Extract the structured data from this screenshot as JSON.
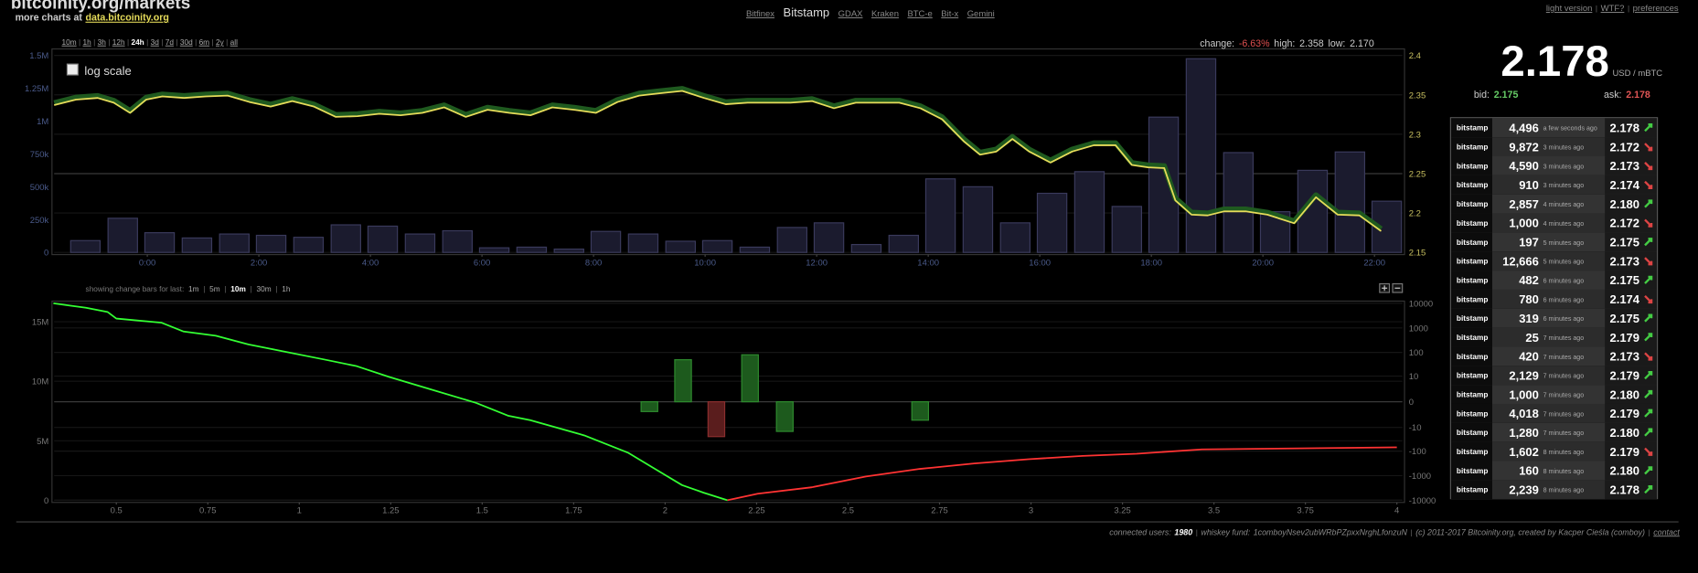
{
  "separator": "|",
  "header": {
    "title": "bitcoinity.org/markets",
    "more_charts": "more charts at",
    "more_charts_link": "data.bitcoinity.org",
    "exchanges": [
      "Bitfinex",
      "Bitstamp",
      "GDAX",
      "Kraken",
      "BTC-e",
      "Bit-x",
      "Gemini"
    ],
    "active_exchange": 1,
    "top_links": [
      "light version",
      "WTF?",
      "preferences"
    ]
  },
  "time_ranges": [
    "10m",
    "1h",
    "3h",
    "12h",
    "24h",
    "3d",
    "7d",
    "30d",
    "6m",
    "2y",
    "all"
  ],
  "time_range_selected": 4,
  "stats": {
    "change_label": "change:",
    "change": "-6.63%",
    "high_label": "high:",
    "high": "2.358",
    "low_label": "low:",
    "low": "2.170"
  },
  "log_scale_label": "log scale",
  "change_bars_note": "showing change bars for last:",
  "change_bar_intervals": [
    "1m",
    "5m",
    "10m",
    "30m",
    "1h"
  ],
  "change_bar_selected": 2,
  "chart_data": [
    {
      "type": "combo",
      "xlim": [
        -1.67,
        22.5
      ],
      "xticks": [
        {
          "value": 0,
          "label": "0:00"
        },
        {
          "value": 2,
          "label": "2:00"
        },
        {
          "value": 4,
          "label": "4:00"
        },
        {
          "value": 6,
          "label": "6:00"
        },
        {
          "value": 8,
          "label": "8:00"
        },
        {
          "value": 10,
          "label": "10:00"
        },
        {
          "value": 12,
          "label": "12:00"
        },
        {
          "value": 14,
          "label": "14:00"
        },
        {
          "value": 16,
          "label": "16:00"
        },
        {
          "value": 18,
          "label": "18:00"
        },
        {
          "value": 20,
          "label": "20:00"
        },
        {
          "value": 22,
          "label": "22:00"
        }
      ],
      "ylim": [
        0,
        1500000
      ],
      "yticks": [
        0,
        {
          "value": 250000,
          "label": "250k"
        },
        {
          "value": 500000,
          "label": "500k"
        },
        {
          "value": 750000,
          "label": "750k"
        },
        {
          "value": 1000000,
          "label": "1M"
        },
        {
          "value": 1250000,
          "label": "1.25M"
        },
        {
          "value": 1500000,
          "label": "1.5M"
        }
      ],
      "y2lim": [
        2.15,
        2.4
      ],
      "y2ticks": [
        2.15,
        2.2,
        2.25,
        2.3,
        2.35,
        2.4
      ],
      "grid": true,
      "series": [
        {
          "type": "bar",
          "color": "#1b1b2e",
          "x": [
            -1.11,
            -0.44,
            0.22,
            0.89,
            1.56,
            2.22,
            2.89,
            3.56,
            4.22,
            4.89,
            5.56,
            6.22,
            6.89,
            7.56,
            8.22,
            8.89,
            9.56,
            10.22,
            10.89,
            11.56,
            12.22,
            12.89,
            13.56,
            14.22,
            14.89,
            15.56,
            16.22,
            16.89,
            17.56,
            18.22,
            18.89,
            19.56,
            20.22,
            20.89,
            21.56,
            22.22
          ],
          "values": [
            90000,
            260000,
            150000,
            110000,
            140000,
            130000,
            115000,
            210000,
            200000,
            140000,
            165000,
            35000,
            40000,
            25000,
            160000,
            140000,
            85000,
            90000,
            40000,
            190000,
            225000,
            60000,
            130000,
            560000,
            500000,
            225000,
            450000,
            615000,
            350000,
            1030000,
            1475000,
            760000,
            310000,
            625000,
            765000,
            390000
          ]
        },
        {
          "type": "line",
          "axis": "y2",
          "color": "#e6dc5a",
          "x": [
            -1.67,
            -1.28,
            -0.89,
            -0.6,
            -0.31,
            -0.02,
            0.27,
            0.66,
            1.05,
            1.44,
            1.83,
            2.21,
            2.6,
            2.99,
            3.38,
            3.77,
            4.16,
            4.54,
            4.93,
            5.32,
            5.71,
            6.1,
            6.49,
            6.87,
            7.26,
            7.65,
            8.04,
            8.43,
            8.82,
            9.2,
            9.59,
            9.98,
            10.37,
            10.76,
            11.15,
            11.53,
            11.92,
            12.31,
            12.7,
            13.09,
            13.48,
            13.86,
            14.25,
            14.64,
            14.93,
            15.22,
            15.51,
            15.81,
            16.19,
            16.58,
            16.97,
            17.36,
            17.65,
            17.94,
            18.23,
            18.43,
            18.72,
            19.01,
            19.3,
            19.69,
            20.08,
            20.56,
            20.95,
            21.34,
            21.73,
            22.12
          ],
          "values": [
            2.337,
            2.344,
            2.346,
            2.34,
            2.327,
            2.344,
            2.348,
            2.346,
            2.348,
            2.349,
            2.341,
            2.335,
            2.342,
            2.335,
            2.322,
            2.323,
            2.326,
            2.324,
            2.327,
            2.334,
            2.322,
            2.331,
            2.327,
            2.324,
            2.334,
            2.331,
            2.327,
            2.341,
            2.349,
            2.352,
            2.355,
            2.346,
            2.338,
            2.34,
            2.34,
            2.34,
            2.342,
            2.333,
            2.34,
            2.34,
            2.34,
            2.333,
            2.319,
            2.291,
            2.274,
            2.278,
            2.294,
            2.278,
            2.264,
            2.278,
            2.286,
            2.286,
            2.261,
            2.258,
            2.257,
            2.216,
            2.198,
            2.197,
            2.202,
            2.202,
            2.198,
            2.187,
            2.22,
            2.198,
            2.197,
            2.177
          ]
        }
      ]
    },
    {
      "type": "depth",
      "xlim": [
        0.33,
        4.015
      ],
      "xticks": [
        0.5,
        0.75,
        1,
        1.25,
        1.5,
        1.75,
        2,
        2.25,
        2.5,
        2.75,
        3,
        3.25,
        3.5,
        3.75,
        4
      ],
      "ylim": [
        0,
        16550000
      ],
      "yticks": [
        0,
        {
          "value": 5000000,
          "label": "5M"
        },
        {
          "value": 10000000,
          "label": "10M"
        },
        {
          "value": 15000000,
          "label": "15M"
        }
      ],
      "y2lim": [
        -10000,
        10000
      ],
      "y2scale": "symlog",
      "y2ticks": [
        10000,
        1000,
        100,
        10,
        0,
        -10,
        -100,
        -1000,
        -10000
      ],
      "series": [
        {
          "type": "line",
          "color": "#33ff33",
          "x": [
            0.328,
            0.373,
            0.417,
            0.476,
            0.5,
            0.624,
            0.684,
            0.772,
            0.861,
            0.95,
            1.069,
            1.157,
            1.246,
            1.365,
            1.483,
            1.572,
            1.631,
            1.779,
            1.898,
            1.987,
            2.046,
            2.105,
            2.17
          ],
          "values": [
            16550000,
            16360000,
            16180000,
            15820000,
            15270000,
            14910000,
            14180000,
            13820000,
            13090000,
            12550000,
            11820000,
            11270000,
            10360000,
            9270000,
            8180000,
            7090000,
            6730000,
            5450000,
            4000000,
            2360000,
            1270000,
            640000,
            0
          ]
        },
        {
          "type": "line",
          "color": "#ff3333",
          "x": [
            2.17,
            2.253,
            2.401,
            2.549,
            2.697,
            2.845,
            2.993,
            3.141,
            3.289,
            3.467,
            3.734,
            4.0
          ],
          "values": [
            0,
            550000,
            1090000,
            2000000,
            2640000,
            3090000,
            3450000,
            3730000,
            3910000,
            4270000,
            4360000,
            4450000
          ]
        },
        {
          "type": "bar",
          "axis": "y2",
          "x": [
            1.957,
            2.049,
            2.14,
            2.232,
            2.327,
            2.697
          ],
          "values": [
            -1.5,
            50,
            -25,
            80,
            -15,
            -4.6
          ],
          "colors": [
            "#1d5a1d",
            "#1d5a1d",
            "#5a1d1d",
            "#1d5a1d",
            "#1d5a1d",
            "#1d5a1d"
          ]
        }
      ]
    }
  ],
  "ticker": {
    "price": "2.178",
    "unit": "USD / mBTC",
    "bid_label": "bid:",
    "bid": "2.175",
    "ask_label": "ask:",
    "ask": "2.178"
  },
  "trades": [
    {
      "exchange": "bitstamp",
      "amount": "4,496",
      "time": "a few seconds ago",
      "price": "2.178",
      "direction": "up"
    },
    {
      "exchange": "bitstamp",
      "amount": "9,872",
      "time": "3 minutes ago",
      "price": "2.172",
      "direction": "down"
    },
    {
      "exchange": "bitstamp",
      "amount": "4,590",
      "time": "3 minutes ago",
      "price": "2.173",
      "direction": "down"
    },
    {
      "exchange": "bitstamp",
      "amount": "910",
      "time": "3 minutes ago",
      "price": "2.174",
      "direction": "down"
    },
    {
      "exchange": "bitstamp",
      "amount": "2,857",
      "time": "4 minutes ago",
      "price": "2.180",
      "direction": "up"
    },
    {
      "exchange": "bitstamp",
      "amount": "1,000",
      "time": "4 minutes ago",
      "price": "2.172",
      "direction": "down"
    },
    {
      "exchange": "bitstamp",
      "amount": "197",
      "time": "5 minutes ago",
      "price": "2.175",
      "direction": "up"
    },
    {
      "exchange": "bitstamp",
      "amount": "12,666",
      "time": "5 minutes ago",
      "price": "2.173",
      "direction": "down"
    },
    {
      "exchange": "bitstamp",
      "amount": "482",
      "time": "6 minutes ago",
      "price": "2.175",
      "direction": "up"
    },
    {
      "exchange": "bitstamp",
      "amount": "780",
      "time": "6 minutes ago",
      "price": "2.174",
      "direction": "down"
    },
    {
      "exchange": "bitstamp",
      "amount": "319",
      "time": "6 minutes ago",
      "price": "2.175",
      "direction": "up"
    },
    {
      "exchange": "bitstamp",
      "amount": "25",
      "time": "7 minutes ago",
      "price": "2.179",
      "direction": "up"
    },
    {
      "exchange": "bitstamp",
      "amount": "420",
      "time": "7 minutes ago",
      "price": "2.173",
      "direction": "down"
    },
    {
      "exchange": "bitstamp",
      "amount": "2,129",
      "time": "7 minutes ago",
      "price": "2.179",
      "direction": "up"
    },
    {
      "exchange": "bitstamp",
      "amount": "1,000",
      "time": "7 minutes ago",
      "price": "2.180",
      "direction": "up"
    },
    {
      "exchange": "bitstamp",
      "amount": "4,018",
      "time": "7 minutes ago",
      "price": "2.179",
      "direction": "up"
    },
    {
      "exchange": "bitstamp",
      "amount": "1,280",
      "time": "7 minutes ago",
      "price": "2.180",
      "direction": "up"
    },
    {
      "exchange": "bitstamp",
      "amount": "1,602",
      "time": "8 minutes ago",
      "price": "2.179",
      "direction": "down"
    },
    {
      "exchange": "bitstamp",
      "amount": "160",
      "time": "8 minutes ago",
      "price": "2.180",
      "direction": "up"
    },
    {
      "exchange": "bitstamp",
      "amount": "2,239",
      "time": "8 minutes ago",
      "price": "2.178",
      "direction": "up"
    }
  ],
  "footer": {
    "users_label": "connected users:",
    "users": "1980",
    "fund_label": "whiskey fund:",
    "fund_address": "1comboyNsev2ubWRbPZpxxNrghLfonzuN",
    "copyright": "(c) 2011-2017 Bitcoinity.org, created by Kacper Cieśla (comboy)",
    "contact": "contact"
  }
}
